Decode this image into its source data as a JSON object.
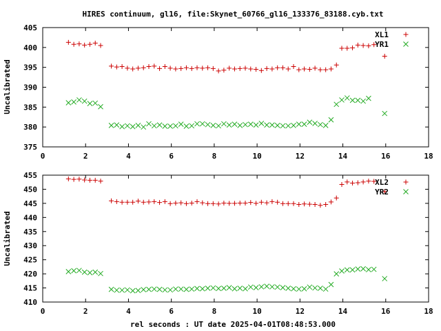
{
  "page": {
    "title": "HIRES continuum, gl16, file:Skynet_60766_gl16_133376_83188.cyb.txt",
    "xlabel": "rel seconds : UT date 2025-04-01T08:48:53.000"
  },
  "colors": {
    "red": "#cc0000",
    "green": "#22aa22",
    "axis": "#000000"
  },
  "chart_data": [
    {
      "type": "scatter",
      "ylabel": "Uncalibrated",
      "xlim": [
        0,
        18
      ],
      "ylim": [
        375,
        405
      ],
      "xticks": [
        0,
        2,
        4,
        6,
        8,
        10,
        12,
        14,
        16,
        18
      ],
      "yticks": [
        375,
        380,
        385,
        390,
        395,
        400,
        405
      ],
      "legend_position": "top-right",
      "series": [
        {
          "name": "XL1",
          "marker": "plus",
          "color": "#cc0000",
          "points": [
            [
              1.2,
              401.3
            ],
            [
              1.45,
              400.8
            ],
            [
              1.7,
              400.9
            ],
            [
              1.95,
              400.6
            ],
            [
              2.2,
              400.8
            ],
            [
              2.45,
              401.1
            ],
            [
              2.7,
              400.5
            ],
            [
              3.2,
              395.3
            ],
            [
              3.45,
              395.1
            ],
            [
              3.7,
              395.2
            ],
            [
              3.95,
              394.8
            ],
            [
              4.2,
              394.6
            ],
            [
              4.45,
              394.8
            ],
            [
              4.7,
              394.9
            ],
            [
              4.95,
              395.2
            ],
            [
              5.2,
              395.3
            ],
            [
              5.45,
              394.7
            ],
            [
              5.7,
              395.2
            ],
            [
              5.95,
              394.8
            ],
            [
              6.2,
              394.6
            ],
            [
              6.45,
              394.7
            ],
            [
              6.7,
              394.9
            ],
            [
              6.95,
              394.7
            ],
            [
              7.2,
              394.9
            ],
            [
              7.45,
              394.8
            ],
            [
              7.7,
              394.9
            ],
            [
              7.95,
              394.7
            ],
            [
              8.2,
              394.1
            ],
            [
              8.45,
              394.3
            ],
            [
              8.7,
              394.8
            ],
            [
              8.95,
              394.6
            ],
            [
              9.2,
              394.7
            ],
            [
              9.45,
              394.8
            ],
            [
              9.7,
              394.6
            ],
            [
              9.95,
              394.5
            ],
            [
              10.2,
              394.2
            ],
            [
              10.45,
              394.7
            ],
            [
              10.7,
              394.6
            ],
            [
              10.95,
              394.9
            ],
            [
              11.2,
              394.9
            ],
            [
              11.45,
              394.6
            ],
            [
              11.7,
              395.2
            ],
            [
              11.95,
              394.4
            ],
            [
              12.2,
              394.6
            ],
            [
              12.45,
              394.5
            ],
            [
              12.7,
              394.8
            ],
            [
              12.95,
              394.4
            ],
            [
              13.2,
              394.4
            ],
            [
              13.45,
              394.6
            ],
            [
              13.7,
              395.6
            ],
            [
              13.95,
              399.8
            ],
            [
              14.2,
              399.8
            ],
            [
              14.45,
              399.9
            ],
            [
              14.7,
              400.6
            ],
            [
              14.95,
              400.5
            ],
            [
              15.2,
              400.4
            ],
            [
              15.45,
              400.7
            ],
            [
              15.95,
              397.8
            ]
          ]
        },
        {
          "name": "YR1",
          "marker": "cross",
          "color": "#22aa22",
          "points": [
            [
              1.2,
              386.1
            ],
            [
              1.45,
              386.3
            ],
            [
              1.7,
              386.8
            ],
            [
              1.95,
              386.5
            ],
            [
              2.2,
              385.9
            ],
            [
              2.45,
              386.0
            ],
            [
              2.7,
              385.1
            ],
            [
              3.2,
              380.4
            ],
            [
              3.45,
              380.5
            ],
            [
              3.7,
              380.1
            ],
            [
              3.95,
              380.3
            ],
            [
              4.2,
              380.1
            ],
            [
              4.45,
              380.4
            ],
            [
              4.7,
              380.0
            ],
            [
              4.95,
              380.8
            ],
            [
              5.2,
              380.3
            ],
            [
              5.45,
              380.5
            ],
            [
              5.7,
              380.2
            ],
            [
              5.95,
              380.2
            ],
            [
              6.2,
              380.3
            ],
            [
              6.45,
              380.7
            ],
            [
              6.7,
              380.2
            ],
            [
              6.95,
              380.3
            ],
            [
              7.2,
              380.8
            ],
            [
              7.45,
              380.8
            ],
            [
              7.7,
              380.6
            ],
            [
              7.95,
              380.4
            ],
            [
              8.2,
              380.3
            ],
            [
              8.45,
              380.8
            ],
            [
              8.7,
              380.5
            ],
            [
              8.95,
              380.7
            ],
            [
              9.2,
              380.4
            ],
            [
              9.45,
              380.6
            ],
            [
              9.7,
              380.7
            ],
            [
              9.95,
              380.5
            ],
            [
              10.2,
              380.9
            ],
            [
              10.45,
              380.5
            ],
            [
              10.7,
              380.5
            ],
            [
              10.95,
              380.4
            ],
            [
              11.2,
              380.3
            ],
            [
              11.45,
              380.3
            ],
            [
              11.7,
              380.4
            ],
            [
              11.95,
              380.7
            ],
            [
              12.2,
              380.7
            ],
            [
              12.45,
              381.2
            ],
            [
              12.7,
              380.9
            ],
            [
              12.95,
              380.6
            ],
            [
              13.2,
              380.4
            ],
            [
              13.45,
              381.8
            ],
            [
              13.7,
              385.7
            ],
            [
              13.95,
              386.8
            ],
            [
              14.2,
              387.3
            ],
            [
              14.45,
              386.7
            ],
            [
              14.7,
              386.7
            ],
            [
              14.95,
              386.5
            ],
            [
              15.2,
              387.2
            ],
            [
              15.95,
              383.4
            ]
          ]
        }
      ]
    },
    {
      "type": "scatter",
      "ylabel": "Uncalibrated",
      "xlim": [
        0,
        18
      ],
      "ylim": [
        410,
        455
      ],
      "xticks": [
        0,
        2,
        4,
        6,
        8,
        10,
        12,
        14,
        16,
        18
      ],
      "yticks": [
        410,
        415,
        420,
        425,
        430,
        435,
        440,
        445,
        450,
        455
      ],
      "legend_position": "top-right",
      "series": [
        {
          "name": "XL2",
          "marker": "plus",
          "color": "#cc0000",
          "points": [
            [
              1.2,
              453.7
            ],
            [
              1.45,
              453.5
            ],
            [
              1.7,
              453.6
            ],
            [
              1.95,
              453.3
            ],
            [
              2.2,
              453.2
            ],
            [
              2.45,
              453.2
            ],
            [
              2.7,
              452.9
            ],
            [
              3.2,
              445.9
            ],
            [
              3.45,
              445.6
            ],
            [
              3.7,
              445.4
            ],
            [
              3.95,
              445.4
            ],
            [
              4.2,
              445.4
            ],
            [
              4.45,
              445.8
            ],
            [
              4.7,
              445.4
            ],
            [
              4.95,
              445.5
            ],
            [
              5.2,
              445.6
            ],
            [
              5.45,
              445.3
            ],
            [
              5.7,
              445.6
            ],
            [
              5.95,
              444.9
            ],
            [
              6.2,
              445.1
            ],
            [
              6.45,
              445.2
            ],
            [
              6.7,
              444.9
            ],
            [
              6.95,
              445.1
            ],
            [
              7.2,
              445.6
            ],
            [
              7.45,
              445.2
            ],
            [
              7.7,
              444.9
            ],
            [
              7.95,
              444.9
            ],
            [
              8.2,
              444.8
            ],
            [
              8.45,
              445.1
            ],
            [
              8.7,
              445.0
            ],
            [
              8.95,
              445.0
            ],
            [
              9.2,
              445.1
            ],
            [
              9.45,
              445.1
            ],
            [
              9.7,
              445.3
            ],
            [
              9.95,
              445.0
            ],
            [
              10.2,
              445.4
            ],
            [
              10.45,
              445.2
            ],
            [
              10.7,
              445.6
            ],
            [
              10.95,
              445.4
            ],
            [
              11.2,
              444.9
            ],
            [
              11.45,
              444.9
            ],
            [
              11.7,
              444.9
            ],
            [
              11.95,
              444.6
            ],
            [
              12.2,
              444.8
            ],
            [
              12.45,
              444.7
            ],
            [
              12.7,
              444.6
            ],
            [
              12.95,
              444.3
            ],
            [
              13.2,
              444.6
            ],
            [
              13.45,
              445.5
            ],
            [
              13.7,
              446.9
            ],
            [
              13.95,
              451.7
            ],
            [
              14.2,
              452.6
            ],
            [
              14.45,
              452.2
            ],
            [
              14.7,
              452.3
            ],
            [
              14.95,
              452.6
            ],
            [
              15.2,
              452.9
            ],
            [
              15.45,
              452.8
            ],
            [
              15.95,
              449.2
            ]
          ]
        },
        {
          "name": "YR2",
          "marker": "cross",
          "color": "#22aa22",
          "points": [
            [
              1.2,
              420.8
            ],
            [
              1.45,
              421.1
            ],
            [
              1.7,
              421.2
            ],
            [
              1.95,
              420.6
            ],
            [
              2.2,
              420.4
            ],
            [
              2.45,
              420.6
            ],
            [
              2.7,
              420.1
            ],
            [
              3.2,
              414.5
            ],
            [
              3.45,
              414.2
            ],
            [
              3.7,
              414.2
            ],
            [
              3.95,
              414.3
            ],
            [
              4.2,
              414.0
            ],
            [
              4.45,
              414.1
            ],
            [
              4.7,
              414.4
            ],
            [
              4.95,
              414.5
            ],
            [
              5.2,
              414.6
            ],
            [
              5.45,
              414.5
            ],
            [
              5.7,
              414.3
            ],
            [
              5.95,
              414.3
            ],
            [
              6.2,
              414.6
            ],
            [
              6.45,
              414.6
            ],
            [
              6.7,
              414.5
            ],
            [
              6.95,
              414.6
            ],
            [
              7.2,
              414.8
            ],
            [
              7.45,
              414.7
            ],
            [
              7.7,
              414.9
            ],
            [
              7.95,
              415.0
            ],
            [
              8.2,
              414.8
            ],
            [
              8.45,
              414.9
            ],
            [
              8.7,
              415.1
            ],
            [
              8.95,
              414.7
            ],
            [
              9.2,
              414.9
            ],
            [
              9.45,
              414.7
            ],
            [
              9.7,
              415.3
            ],
            [
              9.95,
              415.1
            ],
            [
              10.2,
              415.4
            ],
            [
              10.45,
              415.6
            ],
            [
              10.7,
              415.4
            ],
            [
              10.95,
              415.3
            ],
            [
              11.2,
              415.1
            ],
            [
              11.45,
              414.9
            ],
            [
              11.7,
              414.7
            ],
            [
              11.95,
              414.6
            ],
            [
              12.2,
              414.7
            ],
            [
              12.45,
              415.3
            ],
            [
              12.7,
              415.0
            ],
            [
              12.95,
              414.9
            ],
            [
              13.2,
              414.6
            ],
            [
              13.45,
              416.2
            ],
            [
              13.7,
              420.0
            ],
            [
              13.95,
              421.0
            ],
            [
              14.2,
              421.4
            ],
            [
              14.45,
              421.4
            ],
            [
              14.7,
              421.7
            ],
            [
              14.95,
              421.8
            ],
            [
              15.2,
              421.5
            ],
            [
              15.45,
              421.6
            ],
            [
              15.95,
              418.3
            ]
          ]
        }
      ]
    }
  ]
}
